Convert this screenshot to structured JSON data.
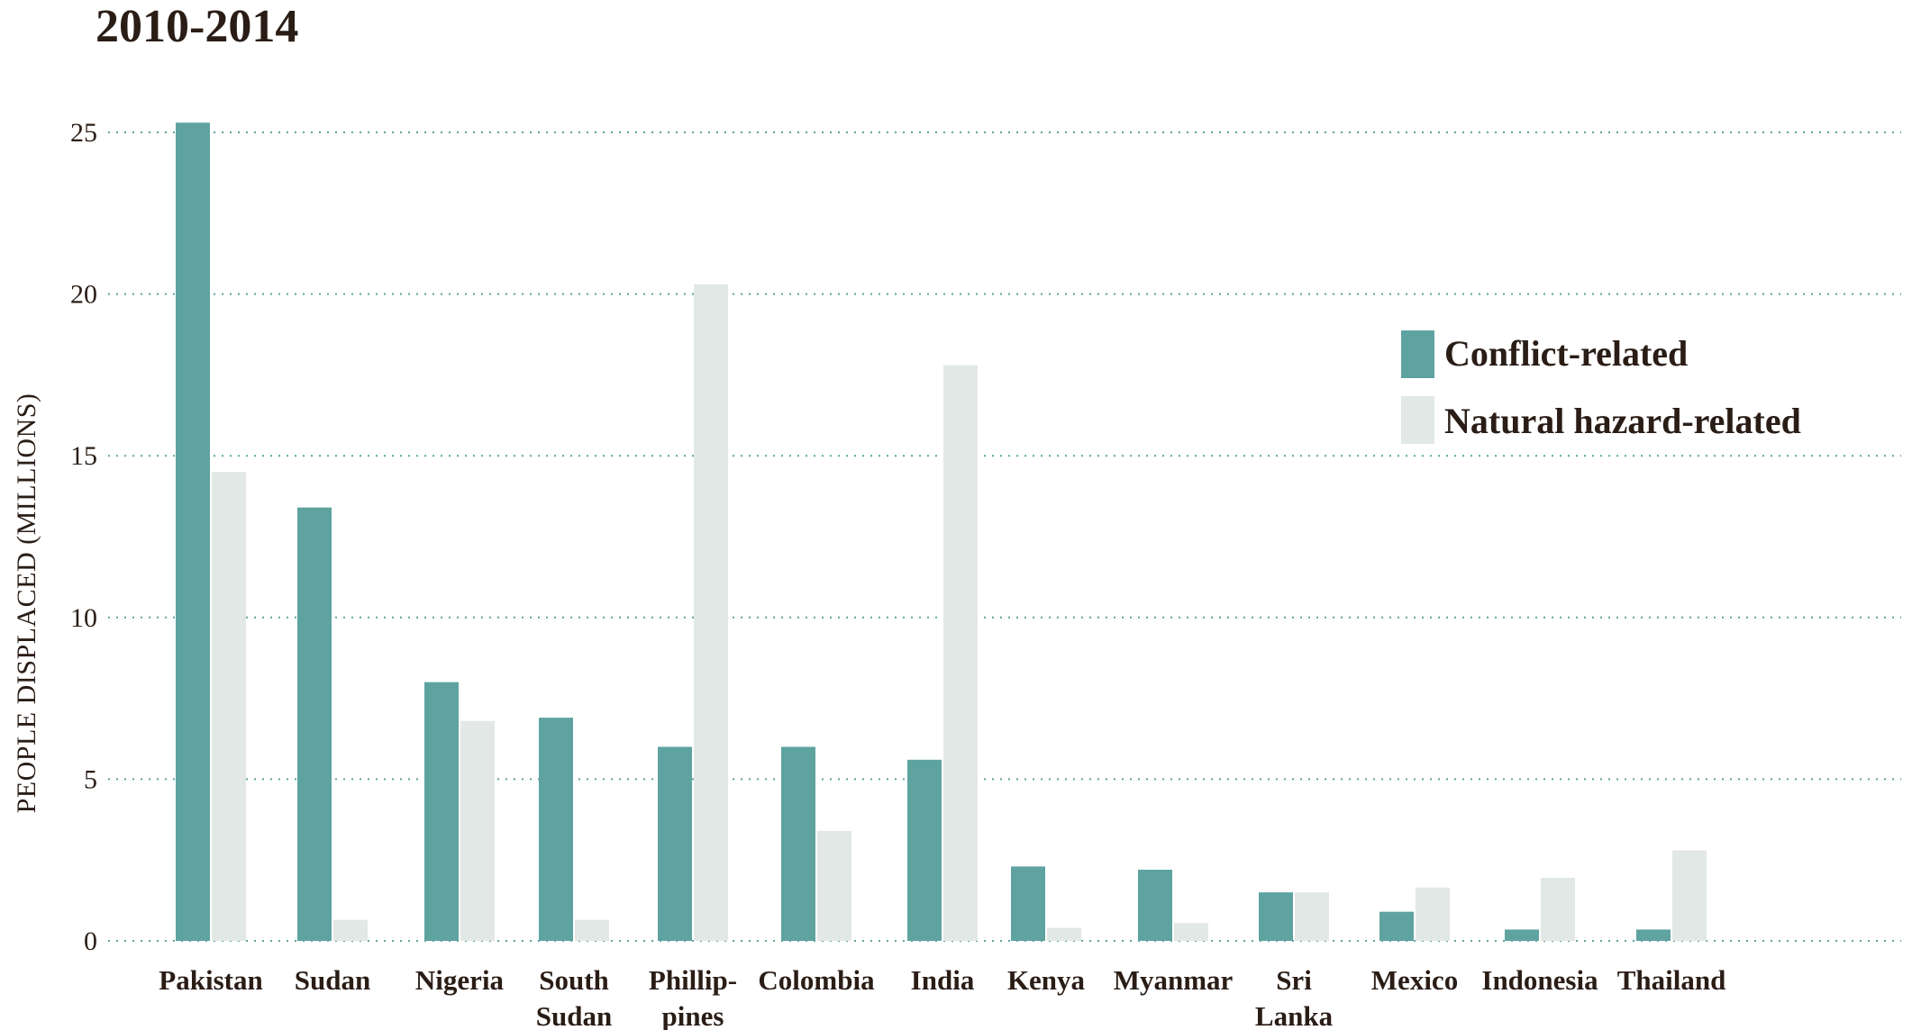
{
  "colors": {
    "conflict": "#5ea3a0",
    "natural": "#e2e8e6",
    "text": "#2a1d16",
    "grid": "#5ea3a0"
  },
  "chart_data": {
    "type": "bar",
    "title": "2010-2014",
    "xlabel": "",
    "ylabel": "PEOPLE DISPLACED (MILLIONS)",
    "ylim": [
      0,
      25
    ],
    "yticks": [
      0,
      5,
      10,
      15,
      20,
      25
    ],
    "grid": true,
    "legend_position": "top-right",
    "categories": [
      [
        "Pakistan"
      ],
      [
        "Sudan"
      ],
      [
        "Nigeria"
      ],
      [
        "South",
        "Sudan"
      ],
      [
        "Phillip-",
        "pines"
      ],
      [
        "Colombia"
      ],
      [
        "India"
      ],
      [
        "Kenya"
      ],
      [
        "Myanmar"
      ],
      [
        "Sri",
        "Lanka"
      ],
      [
        "Mexico"
      ],
      [
        "Indonesia"
      ],
      [
        "Thailand"
      ]
    ],
    "series": [
      {
        "name": "Conflict-related",
        "values": [
          25.3,
          13.4,
          8.0,
          6.9,
          6.0,
          6.0,
          5.6,
          2.3,
          2.2,
          1.5,
          0.9,
          0.35,
          0.35
        ]
      },
      {
        "name": "Natural hazard-related",
        "values": [
          14.5,
          0.65,
          6.8,
          0.65,
          20.3,
          3.4,
          17.8,
          0.4,
          0.55,
          1.5,
          1.65,
          1.95,
          2.8
        ]
      }
    ]
  }
}
